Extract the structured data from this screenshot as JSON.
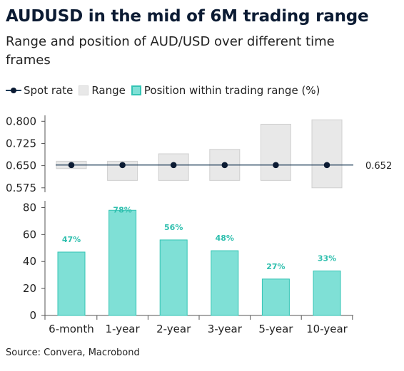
{
  "title": "AUDUSD in the mid of 6M trading range",
  "subtitle": "Range and position of AUD/USD over different time frames",
  "legend": {
    "spot": "Spot rate",
    "range": "Range",
    "position": "Position within trading range (%)"
  },
  "source": "Source: Convera, Macrobond",
  "colors": {
    "range_fill": "#e8e8e8",
    "range_stroke": "#cfcfcf",
    "spot": "#0b1b33",
    "bar_fill": "#7fe0d6",
    "bar_stroke": "#33c4b4",
    "label": "#2fbfae"
  },
  "chart_data": [
    {
      "type": "range",
      "categories": [
        "6-month",
        "1-year",
        "2-year",
        "3-year",
        "5-year",
        "10-year"
      ],
      "ylim": [
        0.56,
        0.82
      ],
      "yticks": [
        "0.800",
        "0.725",
        "0.650",
        "0.575"
      ],
      "series": [
        {
          "name": "Range",
          "low": [
            0.64,
            0.6,
            0.6,
            0.6,
            0.6,
            0.575
          ],
          "high": [
            0.665,
            0.665,
            0.69,
            0.705,
            0.79,
            0.805
          ]
        },
        {
          "name": "Spot rate",
          "values": [
            0.652,
            0.652,
            0.652,
            0.652,
            0.652,
            0.652
          ]
        }
      ],
      "spot_label": "0.652"
    },
    {
      "type": "bar",
      "categories": [
        "6-month",
        "1-year",
        "2-year",
        "3-year",
        "5-year",
        "10-year"
      ],
      "ylim": [
        0,
        85
      ],
      "yticks": [
        "80",
        "60",
        "40",
        "20",
        "0"
      ],
      "series": [
        {
          "name": "Position within trading range (%)",
          "values": [
            47,
            78,
            56,
            48,
            27,
            33
          ]
        }
      ],
      "data_labels": [
        "47%",
        "78%",
        "56%",
        "48%",
        "27%",
        "33%"
      ]
    }
  ]
}
